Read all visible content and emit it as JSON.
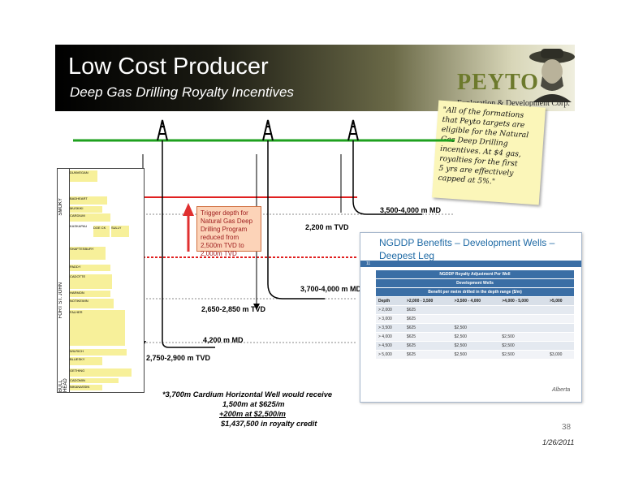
{
  "header": {
    "title": "Low Cost Producer",
    "subtitle": "Deep Gas Drilling Royalty Incentives"
  },
  "logo": {
    "name": "PEYTO",
    "tagline": "Exploration & Development Corp."
  },
  "note": {
    "lines": [
      "\"All of the formations",
      "that Peyto targets are",
      "eligible for the Natural",
      "Gas Deep Drilling",
      "incentives. At $4 gas,",
      "royalties for the first",
      "5 yrs are effectively",
      "capped at 5%.\""
    ]
  },
  "stratigraphy": {
    "groups": [
      "SMOKY",
      "FORT ST. JOHN",
      "BULL HEAD"
    ],
    "formations": [
      "DUNVEGAN",
      "BADHEART",
      "MUSKIKI",
      "CARDIUM",
      "KASKAPAU",
      "DOE CK",
      "SULLY",
      "SHAFTESBURY",
      "PADDY",
      "CADOTTE",
      "HARMON",
      "NOTIKEWIN",
      "FALHER",
      "WILRICH",
      "BLUESKY",
      "GETHING",
      "CADOMIN",
      "NIKANASSIN"
    ]
  },
  "wells": {
    "callouts": [
      "3,500-4,000 m MD",
      "2,200 m TVD",
      "3,700-4,000 m MD",
      "2,650-2,850 m TVD",
      "4,200 m MD",
      "2,750-2,900 m TVD"
    ],
    "trigger_note": "Trigger depth for Natural Gas Deep Drilling Program reduced from 2,500m TVD to 2,000m TVD"
  },
  "ngddp_panel": {
    "title_line1": "NGDDP Benefits – Development Wells –",
    "title_line2": "Deepest Leg",
    "slide_num": "11",
    "table_title1": "NGDDP Royalty Adjustment Per Well",
    "table_title2": "Development Wells",
    "table_title3": "Benefit per metre drilled in the depth range ($/m)",
    "columns": [
      "Depth",
      ">2,000 - 3,500",
      ">3,500 - 4,000",
      ">4,000 - 5,000",
      ">5,000"
    ],
    "rows": [
      [
        "> 2,000",
        "$625",
        "",
        "",
        ""
      ],
      [
        "> 3,000",
        "$625",
        "",
        "",
        ""
      ],
      [
        "> 3,500",
        "$625",
        "$2,500",
        "",
        ""
      ],
      [
        "> 4,000",
        "$625",
        "$2,500",
        "$2,500",
        ""
      ],
      [
        "> 4,500",
        "$625",
        "$2,500",
        "$2,500",
        ""
      ],
      [
        "> 5,000",
        "$625",
        "$2,500",
        "$2,500",
        "$3,000"
      ]
    ],
    "footer_logo": "Alberta"
  },
  "calc": {
    "line1": "*3,700m Cardium Horizontal Well would receive",
    "line2": "1,500m at $625/m",
    "line3": "+200m at $2,500/m",
    "line4": "$1,437,500 in royalty credit"
  },
  "footer": {
    "page": "38",
    "date": "1/26/2011"
  },
  "colors": {
    "surface_line": "#1ea01e",
    "trigger_line": "#e02020",
    "arrow": "#e03030",
    "table_header": "#3a6ea5"
  }
}
